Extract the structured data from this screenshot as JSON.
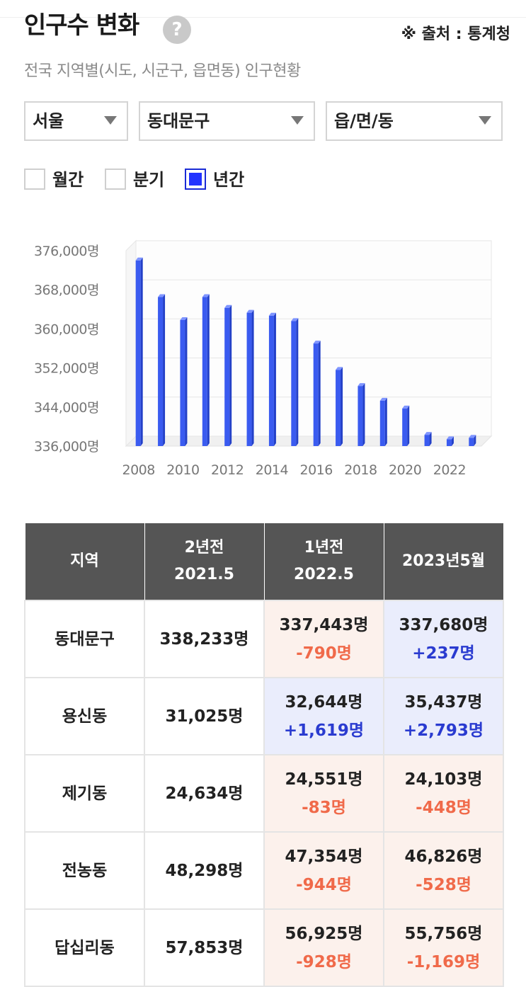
{
  "header": {
    "title": "인구수 변화",
    "help_symbol": "?",
    "source": "※ 출처 : 통계청",
    "subtitle": "전국 지역별(시도, 시군구, 읍면동) 인구현황"
  },
  "filters": {
    "city": "서울",
    "district": "동대문구",
    "dong": "읍/면/동"
  },
  "period": {
    "monthly": "월간",
    "quarterly": "분기",
    "yearly": "년간",
    "selected": "년간"
  },
  "chart_data": {
    "type": "bar",
    "categories": [
      "2008",
      "2009",
      "2010",
      "2011",
      "2012",
      "2013",
      "2014",
      "2015",
      "2016",
      "2017",
      "2018",
      "2019",
      "2020",
      "2021",
      "2022",
      "2023"
    ],
    "values": [
      374000,
      366500,
      361800,
      366500,
      364300,
      363300,
      362700,
      361600,
      357000,
      351600,
      348300,
      345300,
      343700,
      338300,
      337400,
      337700
    ],
    "x_tick_labels": [
      "2008",
      "2010",
      "2012",
      "2014",
      "2016",
      "2018",
      "2020",
      "2022"
    ],
    "y_tick_labels": [
      "376,000명",
      "368,000명",
      "360,000명",
      "352,000명",
      "344,000명",
      "336,000명"
    ],
    "ylim": [
      336000,
      376000
    ],
    "bar_color": "#3a5bf0",
    "grid": true
  },
  "table": {
    "headers": [
      {
        "line1": "지역",
        "line2": ""
      },
      {
        "line1": "2년전",
        "line2": "2021.5"
      },
      {
        "line1": "1년전",
        "line2": "2022.5"
      },
      {
        "line1": "2023년5월",
        "line2": ""
      }
    ],
    "rows": [
      {
        "region": "동대문구",
        "y2": "338,233명",
        "y1": "337,443명",
        "y1_change": "-790명",
        "now": "337,680명",
        "now_change": "+237명"
      },
      {
        "region": "용신동",
        "y2": "31,025명",
        "y1": "32,644명",
        "y1_change": "+1,619명",
        "now": "35,437명",
        "now_change": "+2,793명"
      },
      {
        "region": "제기동",
        "y2": "24,634명",
        "y1": "24,551명",
        "y1_change": "-83명",
        "now": "24,103명",
        "now_change": "-448명"
      },
      {
        "region": "전농동",
        "y2": "48,298명",
        "y1": "47,354명",
        "y1_change": "-944명",
        "now": "46,826명",
        "now_change": "-528명"
      },
      {
        "region": "답십리동",
        "y2": "57,853명",
        "y1": "56,925명",
        "y1_change": "-928명",
        "now": "55,756명",
        "now_change": "-1,169명"
      }
    ]
  },
  "colors": {
    "negative": "#f06a4a",
    "positive": "#2a3bd0",
    "negative_bg": "#fcf1ec",
    "positive_bg": "#eaedfc",
    "header_bg": "#555555"
  }
}
